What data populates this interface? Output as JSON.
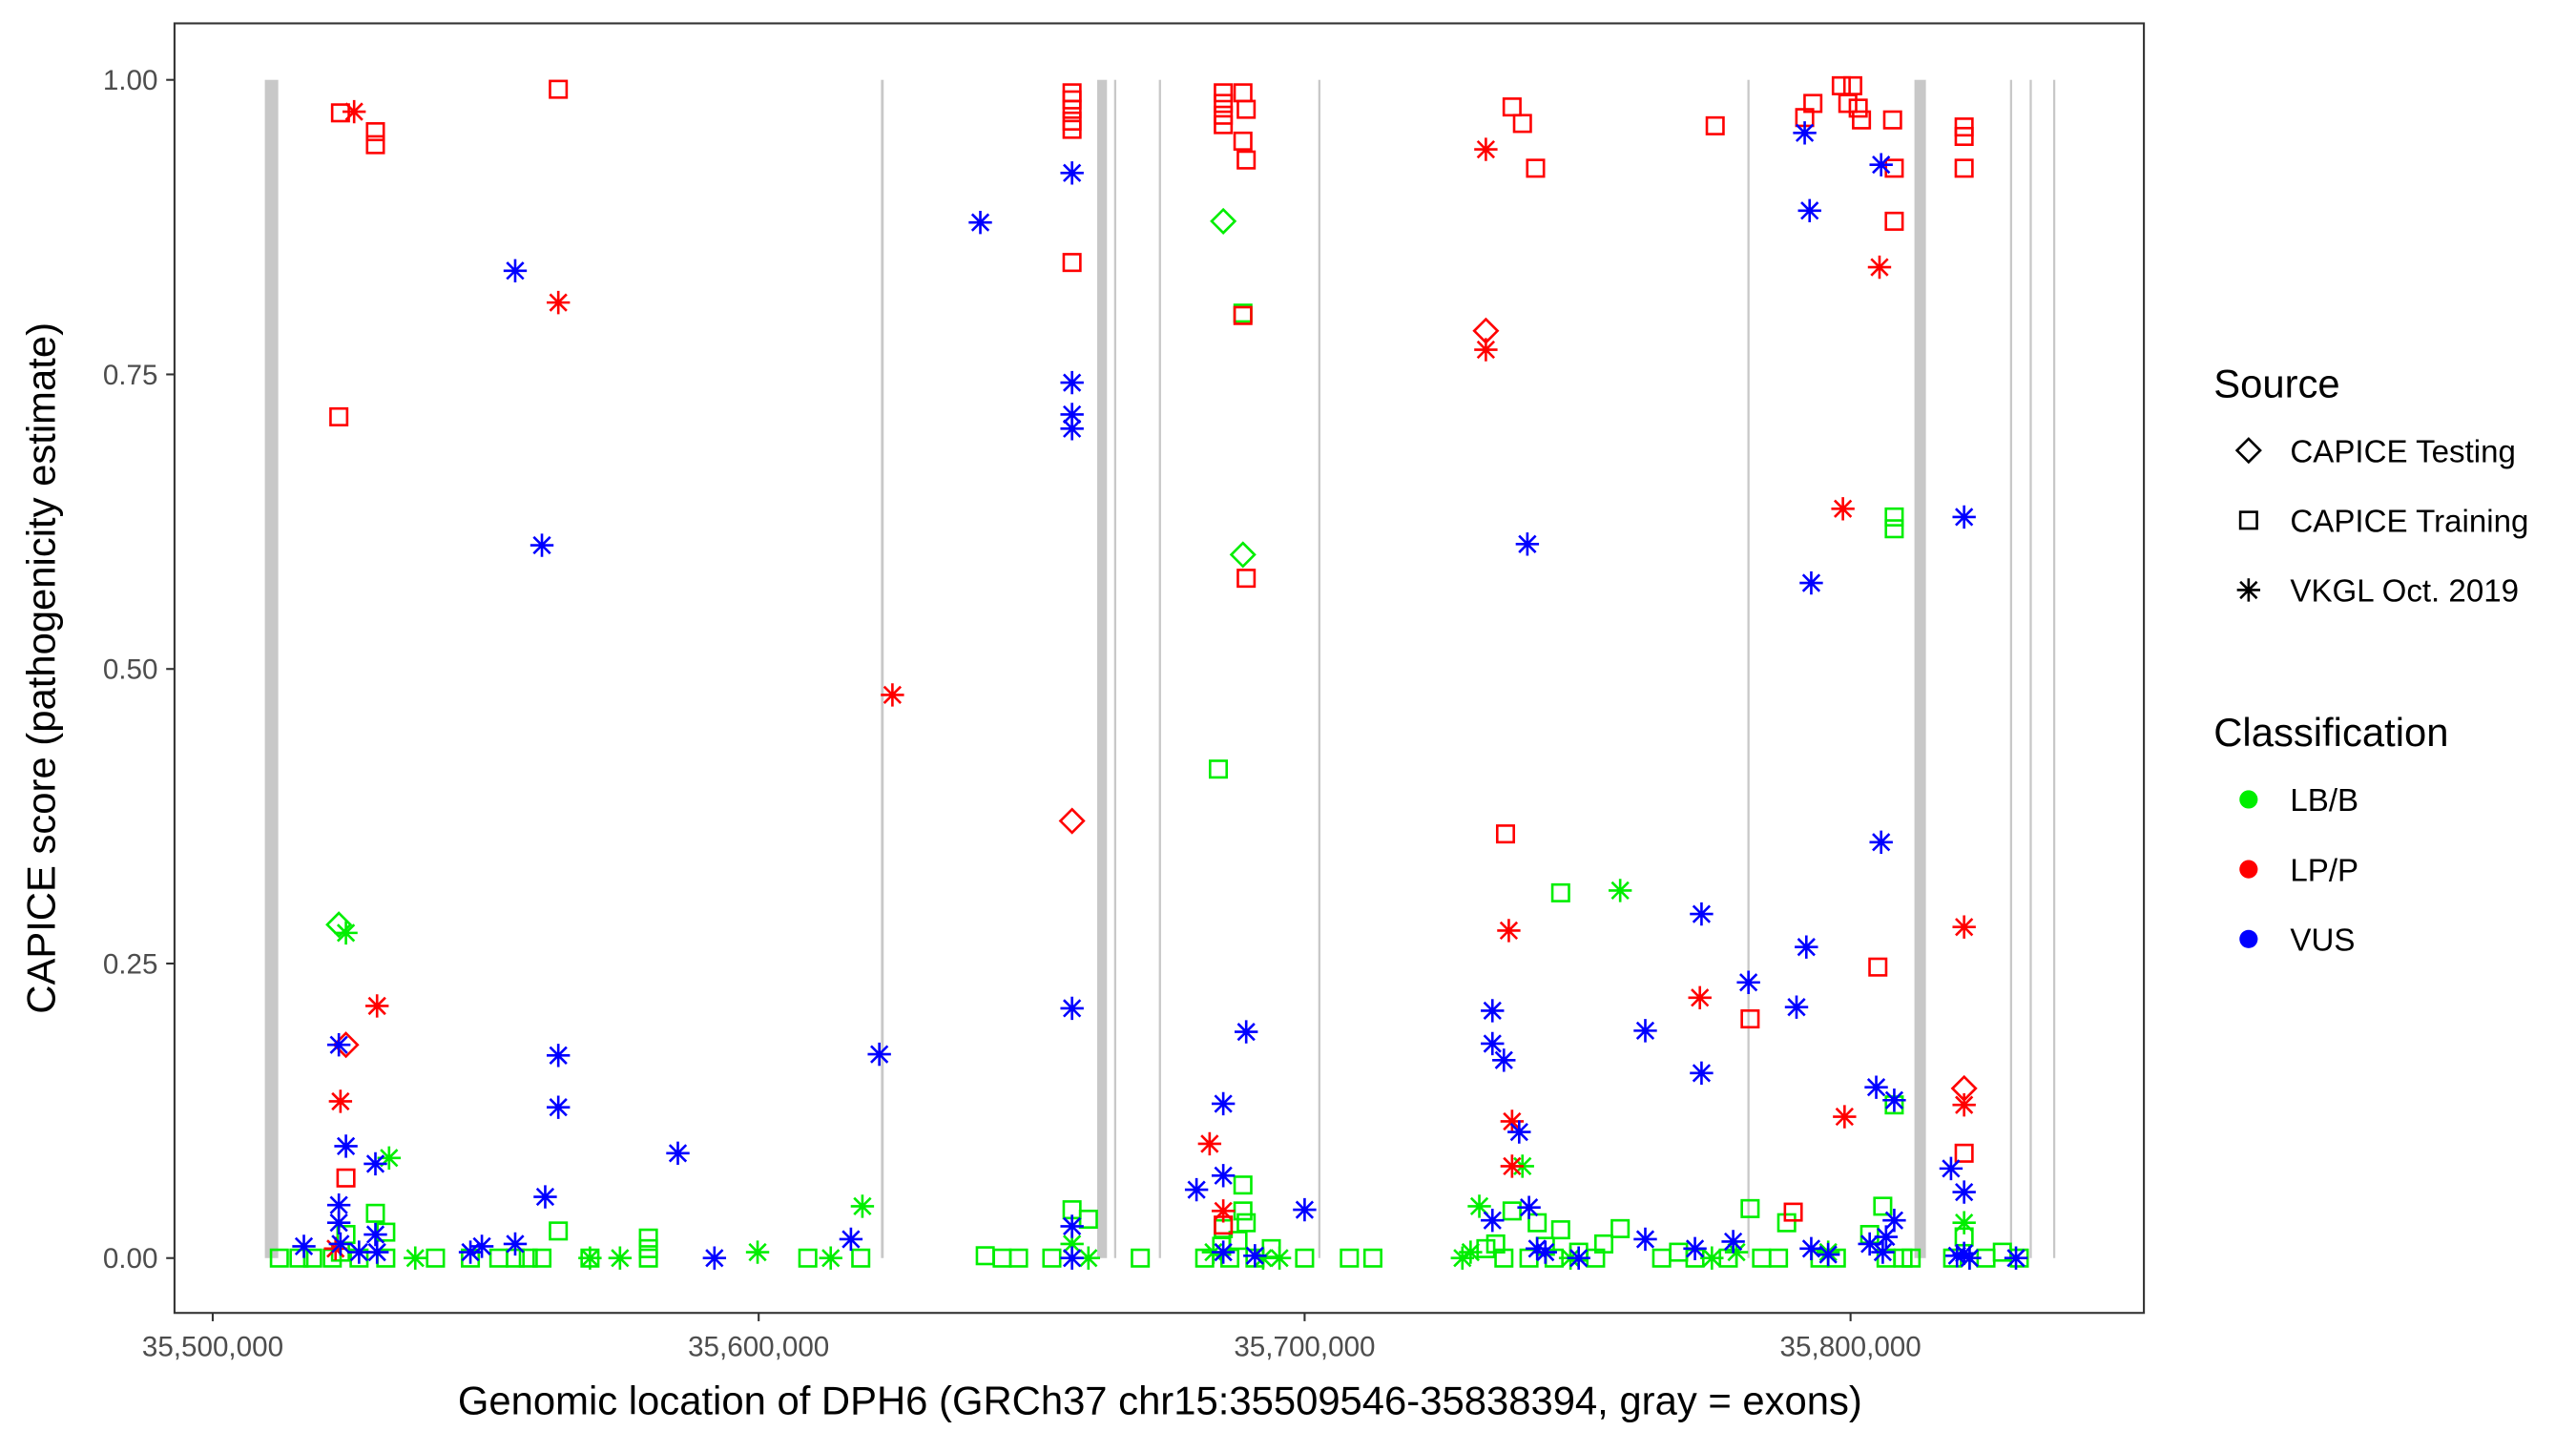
{
  "chart_data": {
    "type": "scatter",
    "xlabel": "Genomic location of DPH6 (GRCh37 chr15:35509546-35838394, gray = exons)",
    "ylabel": "CAPICE score (pathogenicity estimate)",
    "xlim": [
      35490000,
      35850000
    ],
    "ylim": [
      -0.047,
      1.05
    ],
    "x_ticks": [
      {
        "value": 35500000,
        "label": "35,500,000"
      },
      {
        "value": 35600000,
        "label": "35,600,000"
      },
      {
        "value": 35700000,
        "label": "35,700,000"
      },
      {
        "value": 35800000,
        "label": "35,800,000"
      }
    ],
    "y_ticks": [
      {
        "value": 0,
        "label": "0.00"
      },
      {
        "value": 0.25,
        "label": "0.25"
      },
      {
        "value": 0.5,
        "label": "0.50"
      },
      {
        "value": 0.75,
        "label": "0.75"
      },
      {
        "value": 1,
        "label": "1.00"
      }
    ],
    "grid": false,
    "legend_placement": "right",
    "legend": {
      "source_title": "Source",
      "sources": [
        {
          "label": "CAPICE Testing",
          "shape": "diamond"
        },
        {
          "label": "CAPICE Training",
          "shape": "square"
        },
        {
          "label": "VKGL Oct. 2019",
          "shape": "asterisk"
        }
      ],
      "class_title": "Classification",
      "classes": [
        {
          "label": "LB/B",
          "color": "#00ee00"
        },
        {
          "label": "LP/P",
          "color": "#ff0000"
        },
        {
          "label": "VUS",
          "color": "#0000ff"
        }
      ]
    },
    "exons": [
      [
        35509546,
        35512000
      ],
      [
        35622400,
        35622900
      ],
      [
        35662000,
        35663800
      ],
      [
        35665100,
        35665500
      ],
      [
        35673300,
        35673700
      ],
      [
        35702500,
        35702900
      ],
      [
        35781100,
        35781500
      ],
      [
        35811700,
        35813800
      ],
      [
        35829200,
        35829600
      ],
      [
        35832800,
        35833200
      ],
      [
        35837100,
        35837500
      ]
    ],
    "points": [
      [
        35512200,
        0,
        1,
        0
      ],
      [
        35515800,
        0,
        1,
        0
      ],
      [
        35516700,
        0.01,
        2,
        2
      ],
      [
        35518300,
        0,
        1,
        0
      ],
      [
        35521900,
        0,
        1,
        0
      ],
      [
        35523400,
        0.005,
        1,
        0
      ],
      [
        35524400,
        0.02,
        1,
        0
      ],
      [
        35526800,
        0,
        1,
        0
      ],
      [
        35529800,
        0.038,
        1,
        0
      ],
      [
        35531700,
        0.022,
        1,
        0
      ],
      [
        35531700,
        0,
        1,
        0
      ],
      [
        35537100,
        0,
        2,
        0
      ],
      [
        35540800,
        0,
        1,
        0
      ],
      [
        35547200,
        0,
        1,
        0
      ],
      [
        35547200,
        0.005,
        2,
        2
      ],
      [
        35549300,
        0.01,
        2,
        2
      ],
      [
        35552400,
        0,
        1,
        0
      ],
      [
        35555400,
        0,
        1,
        0
      ],
      [
        35555400,
        0.012,
        2,
        2
      ],
      [
        35557800,
        0,
        1,
        0
      ],
      [
        35560300,
        0,
        1,
        0
      ],
      [
        35563300,
        0.023,
        1,
        0
      ],
      [
        35569100,
        0,
        1,
        0
      ],
      [
        35569100,
        0,
        2,
        0
      ],
      [
        35574600,
        0,
        2,
        0
      ],
      [
        35579800,
        0,
        1,
        0
      ],
      [
        35579800,
        0.008,
        1,
        0
      ],
      [
        35579800,
        0.017,
        1,
        0
      ],
      [
        35591900,
        0,
        2,
        2
      ],
      [
        35599800,
        0.005,
        2,
        0
      ],
      [
        35609000,
        0,
        1,
        0
      ],
      [
        35613200,
        0,
        2,
        0
      ],
      [
        35618700,
        0,
        1,
        0
      ],
      [
        35619000,
        0.044,
        2,
        0
      ],
      [
        35616900,
        0.016,
        2,
        2
      ],
      [
        35641500,
        0.002,
        1,
        0
      ],
      [
        35644600,
        0,
        1,
        0
      ],
      [
        35647600,
        0,
        1,
        0
      ],
      [
        35653700,
        0,
        1,
        0
      ],
      [
        35657400,
        0.041,
        1,
        0
      ],
      [
        35657400,
        0.012,
        2,
        0
      ],
      [
        35660400,
        0.033,
        1,
        0
      ],
      [
        35660400,
        0,
        2,
        0
      ],
      [
        35669900,
        0,
        1,
        0
      ],
      [
        35681700,
        0,
        1,
        0
      ],
      [
        35683300,
        0.005,
        2,
        0
      ],
      [
        35684800,
        0.01,
        1,
        0
      ],
      [
        35685100,
        0.025,
        1,
        0
      ],
      [
        35686300,
        0,
        1,
        0
      ],
      [
        35687800,
        0.015,
        1,
        0
      ],
      [
        35688700,
        0.04,
        1,
        0
      ],
      [
        35688700,
        0.062,
        1,
        0
      ],
      [
        35689300,
        0.03,
        1,
        0
      ],
      [
        35690900,
        0,
        1,
        0
      ],
      [
        35692400,
        0,
        2,
        0
      ],
      [
        35693900,
        0.008,
        1,
        0
      ],
      [
        35695400,
        0,
        2,
        0
      ],
      [
        35700000,
        0,
        1,
        0
      ],
      [
        35708200,
        0,
        1,
        0
      ],
      [
        35712500,
        0,
        1,
        0
      ],
      [
        35728900,
        0,
        2,
        0
      ],
      [
        35730400,
        0.005,
        2,
        0
      ],
      [
        35732000,
        0.044,
        2,
        0
      ],
      [
        35733200,
        0.008,
        1,
        0
      ],
      [
        35735000,
        0.012,
        1,
        0
      ],
      [
        35736500,
        0,
        1,
        0
      ],
      [
        35738000,
        0.04,
        1,
        0
      ],
      [
        35739900,
        0.078,
        2,
        0
      ],
      [
        35741100,
        0,
        1,
        0
      ],
      [
        35742600,
        0.03,
        1,
        0
      ],
      [
        35744100,
        0.01,
        1,
        0
      ],
      [
        35745700,
        0,
        1,
        0
      ],
      [
        35746900,
        0.024,
        1,
        0
      ],
      [
        35748700,
        0,
        2,
        0
      ],
      [
        35750200,
        0.005,
        1,
        0
      ],
      [
        35753300,
        0,
        1,
        0
      ],
      [
        35754800,
        0.012,
        1,
        0
      ],
      [
        35757800,
        0.025,
        1,
        0
      ],
      [
        35765400,
        0,
        1,
        0
      ],
      [
        35768500,
        0.005,
        1,
        0
      ],
      [
        35771500,
        0,
        1,
        0
      ],
      [
        35774600,
        0,
        2,
        0
      ],
      [
        35777600,
        0,
        1,
        0
      ],
      [
        35779100,
        0.005,
        2,
        0
      ],
      [
        35781600,
        0.042,
        1,
        0
      ],
      [
        35783700,
        0,
        1,
        0
      ],
      [
        35786800,
        0,
        1,
        0
      ],
      [
        35788300,
        0.03,
        1,
        0
      ],
      [
        35794400,
        0,
        1,
        0
      ],
      [
        35795900,
        0.005,
        2,
        0
      ],
      [
        35797400,
        0,
        1,
        0
      ],
      [
        35803500,
        0.02,
        1,
        0
      ],
      [
        35805900,
        0.044,
        1,
        0
      ],
      [
        35806500,
        0,
        1,
        0
      ],
      [
        35808000,
        0.13,
        1,
        0
      ],
      [
        35808000,
        0.629,
        1,
        0
      ],
      [
        35808000,
        0.619,
        1,
        0
      ],
      [
        35809600,
        0,
        1,
        0
      ],
      [
        35811100,
        0,
        1,
        0
      ],
      [
        35818700,
        0,
        1,
        0
      ],
      [
        35820800,
        0.018,
        1,
        0
      ],
      [
        35820800,
        0.03,
        2,
        0
      ],
      [
        35821800,
        0,
        2,
        0
      ],
      [
        35824800,
        0,
        1,
        0
      ],
      [
        35827800,
        0.005,
        1,
        0
      ],
      [
        35830900,
        0,
        1,
        0
      ],
      [
        35523100,
        0.283,
        0,
        0
      ],
      [
        35524400,
        0.276,
        2,
        0
      ],
      [
        35532300,
        0.085,
        2,
        0
      ],
      [
        35685100,
        0.88,
        0,
        0
      ],
      [
        35688700,
        0.802,
        1,
        0
      ],
      [
        35688700,
        0.597,
        0,
        0
      ],
      [
        35684200,
        0.415,
        1,
        0
      ],
      [
        35746900,
        0.31,
        1,
        0
      ],
      [
        35757800,
        0.312,
        2,
        0
      ],
      [
        35523400,
        0.972,
        1,
        1
      ],
      [
        35525900,
        0.973,
        2,
        1
      ],
      [
        35529800,
        0.956,
        1,
        1
      ],
      [
        35529800,
        0.945,
        1,
        1
      ],
      [
        35563300,
        0.992,
        1,
        1
      ],
      [
        35563300,
        0.811,
        2,
        1
      ],
      [
        35523100,
        0.714,
        1,
        1
      ],
      [
        35624500,
        0.478,
        2,
        1
      ],
      [
        35530100,
        0.214,
        2,
        1
      ],
      [
        35524400,
        0.181,
        0,
        1
      ],
      [
        35523400,
        0.133,
        2,
        1
      ],
      [
        35524400,
        0.068,
        1,
        1
      ],
      [
        35522500,
        0.008,
        2,
        1
      ],
      [
        35657400,
        0.989,
        1,
        1
      ],
      [
        35657400,
        0.983,
        1,
        1
      ],
      [
        35657400,
        0.975,
        1,
        1
      ],
      [
        35657400,
        0.965,
        1,
        1
      ],
      [
        35657400,
        0.958,
        1,
        1
      ],
      [
        35657400,
        0.845,
        1,
        1
      ],
      [
        35657400,
        0.371,
        0,
        1
      ],
      [
        35685100,
        0.989,
        1,
        1
      ],
      [
        35685100,
        0.98,
        1,
        1
      ],
      [
        35685100,
        0.97,
        1,
        1
      ],
      [
        35685100,
        0.962,
        1,
        1
      ],
      [
        35688700,
        0.989,
        1,
        1
      ],
      [
        35689300,
        0.975,
        1,
        1
      ],
      [
        35688700,
        0.948,
        1,
        1
      ],
      [
        35689300,
        0.932,
        1,
        1
      ],
      [
        35688700,
        0.8,
        1,
        1
      ],
      [
        35689300,
        0.577,
        1,
        1
      ],
      [
        35682600,
        0.097,
        2,
        1
      ],
      [
        35685100,
        0.04,
        2,
        1
      ],
      [
        35685100,
        0.028,
        1,
        1
      ],
      [
        35733200,
        0.941,
        2,
        1
      ],
      [
        35733200,
        0.787,
        0,
        1
      ],
      [
        35733200,
        0.771,
        2,
        1
      ],
      [
        35738000,
        0.977,
        1,
        1
      ],
      [
        35739900,
        0.963,
        1,
        1
      ],
      [
        35742300,
        0.925,
        1,
        1
      ],
      [
        35736800,
        0.36,
        1,
        1
      ],
      [
        35737400,
        0.278,
        2,
        1
      ],
      [
        35738000,
        0.116,
        2,
        1
      ],
      [
        35738000,
        0.078,
        2,
        1
      ],
      [
        35775200,
        0.961,
        1,
        1
      ],
      [
        35791600,
        0.968,
        1,
        1
      ],
      [
        35793100,
        0.98,
        1,
        1
      ],
      [
        35798300,
        0.995,
        1,
        1
      ],
      [
        35800400,
        0.995,
        1,
        1
      ],
      [
        35799500,
        0.98,
        1,
        1
      ],
      [
        35801400,
        0.976,
        1,
        1
      ],
      [
        35802000,
        0.966,
        1,
        1
      ],
      [
        35807700,
        0.966,
        1,
        1
      ],
      [
        35808000,
        0.925,
        1,
        1
      ],
      [
        35808000,
        0.88,
        1,
        1
      ],
      [
        35805300,
        0.841,
        2,
        1
      ],
      [
        35798600,
        0.636,
        2,
        1
      ],
      [
        35805000,
        0.247,
        1,
        1
      ],
      [
        35820800,
        0.281,
        2,
        1
      ],
      [
        35772400,
        0.221,
        2,
        1
      ],
      [
        35781600,
        0.203,
        1,
        1
      ],
      [
        35820800,
        0.144,
        0,
        1
      ],
      [
        35820800,
        0.13,
        2,
        1
      ],
      [
        35798900,
        0.12,
        2,
        1
      ],
      [
        35820800,
        0.089,
        1,
        1
      ],
      [
        35789500,
        0.039,
        1,
        1
      ],
      [
        35820800,
        0.96,
        1,
        1
      ],
      [
        35820800,
        0.952,
        1,
        1
      ],
      [
        35820800,
        0.925,
        1,
        1
      ],
      [
        35555400,
        0.838,
        2,
        2
      ],
      [
        35560300,
        0.605,
        2,
        2
      ],
      [
        35640600,
        0.879,
        2,
        2
      ],
      [
        35563300,
        0.172,
        2,
        2
      ],
      [
        35563300,
        0.128,
        2,
        2
      ],
      [
        35560900,
        0.052,
        2,
        2
      ],
      [
        35622100,
        0.173,
        2,
        2
      ],
      [
        35585200,
        0.089,
        2,
        2
      ],
      [
        35523100,
        0.181,
        2,
        2
      ],
      [
        35524400,
        0.095,
        2,
        2
      ],
      [
        35529800,
        0.08,
        2,
        2
      ],
      [
        35523100,
        0.045,
        2,
        2
      ],
      [
        35523100,
        0.03,
        2,
        2
      ],
      [
        35523400,
        0.012,
        2,
        2
      ],
      [
        35526800,
        0.005,
        2,
        2
      ],
      [
        35529800,
        0.02,
        2,
        2
      ],
      [
        35530100,
        0.005,
        2,
        2
      ],
      [
        35657400,
        0.921,
        2,
        2
      ],
      [
        35657400,
        0.743,
        2,
        2
      ],
      [
        35657400,
        0.716,
        2,
        2
      ],
      [
        35657400,
        0.704,
        2,
        2
      ],
      [
        35657400,
        0.212,
        2,
        2
      ],
      [
        35657400,
        0.027,
        2,
        2
      ],
      [
        35657400,
        0,
        2,
        2
      ],
      [
        35689300,
        0.192,
        2,
        2
      ],
      [
        35685100,
        0.131,
        2,
        2
      ],
      [
        35680200,
        0.058,
        2,
        2
      ],
      [
        35685100,
        0.07,
        2,
        2
      ],
      [
        35700000,
        0.041,
        2,
        2
      ],
      [
        35685100,
        0.005,
        2,
        2
      ],
      [
        35690900,
        0.002,
        2,
        2
      ],
      [
        35734400,
        0.21,
        2,
        2
      ],
      [
        35734400,
        0.182,
        2,
        2
      ],
      [
        35736500,
        0.168,
        2,
        2
      ],
      [
        35739300,
        0.107,
        2,
        2
      ],
      [
        35740800,
        0.606,
        2,
        2
      ],
      [
        35734400,
        0.032,
        2,
        2
      ],
      [
        35741100,
        0.043,
        2,
        2
      ],
      [
        35742600,
        0.008,
        2,
        2
      ],
      [
        35744100,
        0.005,
        2,
        2
      ],
      [
        35750200,
        0,
        2,
        2
      ],
      [
        35772700,
        0.292,
        2,
        2
      ],
      [
        35781300,
        0.234,
        2,
        2
      ],
      [
        35791900,
        0.264,
        2,
        2
      ],
      [
        35790100,
        0.213,
        2,
        2
      ],
      [
        35762400,
        0.193,
        2,
        2
      ],
      [
        35772700,
        0.157,
        2,
        2
      ],
      [
        35762400,
        0.016,
        2,
        2
      ],
      [
        35771500,
        0.008,
        2,
        2
      ],
      [
        35778500,
        0.014,
        2,
        2
      ],
      [
        35791600,
        0.955,
        2,
        2
      ],
      [
        35792500,
        0.889,
        2,
        2
      ],
      [
        35805600,
        0.928,
        2,
        2
      ],
      [
        35792800,
        0.573,
        2,
        2
      ],
      [
        35805600,
        0.353,
        2,
        2
      ],
      [
        35804700,
        0.145,
        2,
        2
      ],
      [
        35808000,
        0.134,
        2,
        2
      ],
      [
        35792800,
        0.008,
        2,
        2
      ],
      [
        35795900,
        0.003,
        2,
        2
      ],
      [
        35803500,
        0.012,
        2,
        2
      ],
      [
        35806500,
        0.018,
        2,
        2
      ],
      [
        35808000,
        0.032,
        2,
        2
      ],
      [
        35805900,
        0.005,
        2,
        2
      ],
      [
        35820800,
        0.629,
        2,
        2
      ],
      [
        35818400,
        0.076,
        2,
        2
      ],
      [
        35820800,
        0.056,
        2,
        2
      ],
      [
        35820800,
        0.004,
        2,
        2
      ],
      [
        35821800,
        0,
        2,
        2
      ],
      [
        35819500,
        0.002,
        2,
        2
      ],
      [
        35830300,
        0,
        2,
        2
      ]
    ]
  }
}
